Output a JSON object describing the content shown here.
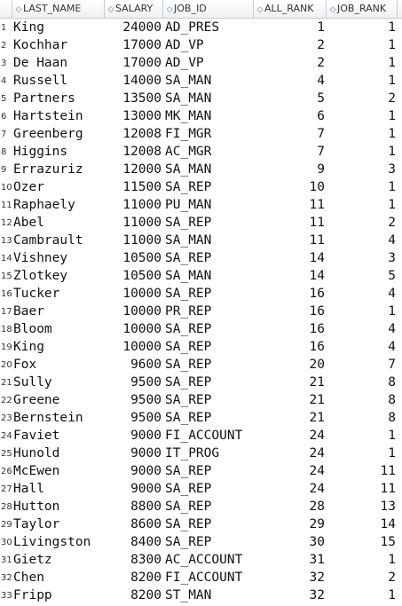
{
  "columns": [
    {
      "key": "last_name",
      "label": "LAST_NAME"
    },
    {
      "key": "salary",
      "label": "SALARY"
    },
    {
      "key": "job_id",
      "label": "JOB_ID"
    },
    {
      "key": "all_rank",
      "label": "ALL_RANK"
    },
    {
      "key": "job_rank",
      "label": "JOB_RANK"
    }
  ],
  "rows": [
    {
      "n": "1",
      "last_name": "King",
      "salary": "24000",
      "job_id": "AD_PRES",
      "all_rank": "1",
      "job_rank": "1"
    },
    {
      "n": "2",
      "last_name": "Kochhar",
      "salary": "17000",
      "job_id": "AD_VP",
      "all_rank": "2",
      "job_rank": "1"
    },
    {
      "n": "3",
      "last_name": "De Haan",
      "salary": "17000",
      "job_id": "AD_VP",
      "all_rank": "2",
      "job_rank": "1"
    },
    {
      "n": "4",
      "last_name": "Russell",
      "salary": "14000",
      "job_id": "SA_MAN",
      "all_rank": "4",
      "job_rank": "1"
    },
    {
      "n": "5",
      "last_name": "Partners",
      "salary": "13500",
      "job_id": "SA_MAN",
      "all_rank": "5",
      "job_rank": "2"
    },
    {
      "n": "6",
      "last_name": "Hartstein",
      "salary": "13000",
      "job_id": "MK_MAN",
      "all_rank": "6",
      "job_rank": "1"
    },
    {
      "n": "7",
      "last_name": "Greenberg",
      "salary": "12008",
      "job_id": "FI_MGR",
      "all_rank": "7",
      "job_rank": "1"
    },
    {
      "n": "8",
      "last_name": "Higgins",
      "salary": "12008",
      "job_id": "AC_MGR",
      "all_rank": "7",
      "job_rank": "1"
    },
    {
      "n": "9",
      "last_name": "Errazuriz",
      "salary": "12000",
      "job_id": "SA_MAN",
      "all_rank": "9",
      "job_rank": "3"
    },
    {
      "n": "10",
      "last_name": "Ozer",
      "salary": "11500",
      "job_id": "SA_REP",
      "all_rank": "10",
      "job_rank": "1"
    },
    {
      "n": "11",
      "last_name": "Raphaely",
      "salary": "11000",
      "job_id": "PU_MAN",
      "all_rank": "11",
      "job_rank": "1"
    },
    {
      "n": "12",
      "last_name": "Abel",
      "salary": "11000",
      "job_id": "SA_REP",
      "all_rank": "11",
      "job_rank": "2"
    },
    {
      "n": "13",
      "last_name": "Cambrault",
      "salary": "11000",
      "job_id": "SA_MAN",
      "all_rank": "11",
      "job_rank": "4"
    },
    {
      "n": "14",
      "last_name": "Vishney",
      "salary": "10500",
      "job_id": "SA_REP",
      "all_rank": "14",
      "job_rank": "3"
    },
    {
      "n": "15",
      "last_name": "Zlotkey",
      "salary": "10500",
      "job_id": "SA_MAN",
      "all_rank": "14",
      "job_rank": "5"
    },
    {
      "n": "16",
      "last_name": "Tucker",
      "salary": "10000",
      "job_id": "SA_REP",
      "all_rank": "16",
      "job_rank": "4"
    },
    {
      "n": "17",
      "last_name": "Baer",
      "salary": "10000",
      "job_id": "PR_REP",
      "all_rank": "16",
      "job_rank": "1"
    },
    {
      "n": "18",
      "last_name": "Bloom",
      "salary": "10000",
      "job_id": "SA_REP",
      "all_rank": "16",
      "job_rank": "4"
    },
    {
      "n": "19",
      "last_name": "King",
      "salary": "10000",
      "job_id": "SA_REP",
      "all_rank": "16",
      "job_rank": "4"
    },
    {
      "n": "20",
      "last_name": "Fox",
      "salary": "9600",
      "job_id": "SA_REP",
      "all_rank": "20",
      "job_rank": "7"
    },
    {
      "n": "21",
      "last_name": "Sully",
      "salary": "9500",
      "job_id": "SA_REP",
      "all_rank": "21",
      "job_rank": "8"
    },
    {
      "n": "22",
      "last_name": "Greene",
      "salary": "9500",
      "job_id": "SA_REP",
      "all_rank": "21",
      "job_rank": "8"
    },
    {
      "n": "23",
      "last_name": "Bernstein",
      "salary": "9500",
      "job_id": "SA_REP",
      "all_rank": "21",
      "job_rank": "8"
    },
    {
      "n": "24",
      "last_name": "Faviet",
      "salary": "9000",
      "job_id": "FI_ACCOUNT",
      "all_rank": "24",
      "job_rank": "1"
    },
    {
      "n": "25",
      "last_name": "Hunold",
      "salary": "9000",
      "job_id": "IT_PROG",
      "all_rank": "24",
      "job_rank": "1"
    },
    {
      "n": "26",
      "last_name": "McEwen",
      "salary": "9000",
      "job_id": "SA_REP",
      "all_rank": "24",
      "job_rank": "11"
    },
    {
      "n": "27",
      "last_name": "Hall",
      "salary": "9000",
      "job_id": "SA_REP",
      "all_rank": "24",
      "job_rank": "11"
    },
    {
      "n": "28",
      "last_name": "Hutton",
      "salary": "8800",
      "job_id": "SA_REP",
      "all_rank": "28",
      "job_rank": "13"
    },
    {
      "n": "29",
      "last_name": "Taylor",
      "salary": "8600",
      "job_id": "SA_REP",
      "all_rank": "29",
      "job_rank": "14"
    },
    {
      "n": "30",
      "last_name": "Livingston",
      "salary": "8400",
      "job_id": "SA_REP",
      "all_rank": "30",
      "job_rank": "15"
    },
    {
      "n": "31",
      "last_name": "Gietz",
      "salary": "8300",
      "job_id": "AC_ACCOUNT",
      "all_rank": "31",
      "job_rank": "1"
    },
    {
      "n": "32",
      "last_name": "Chen",
      "salary": "8200",
      "job_id": "FI_ACCOUNT",
      "all_rank": "32",
      "job_rank": "2"
    },
    {
      "n": "33",
      "last_name": "Fripp",
      "salary": "8200",
      "job_id": "ST_MAN",
      "all_rank": "32",
      "job_rank": "1"
    }
  ],
  "icons": {
    "sort": "column-sort-icon"
  }
}
